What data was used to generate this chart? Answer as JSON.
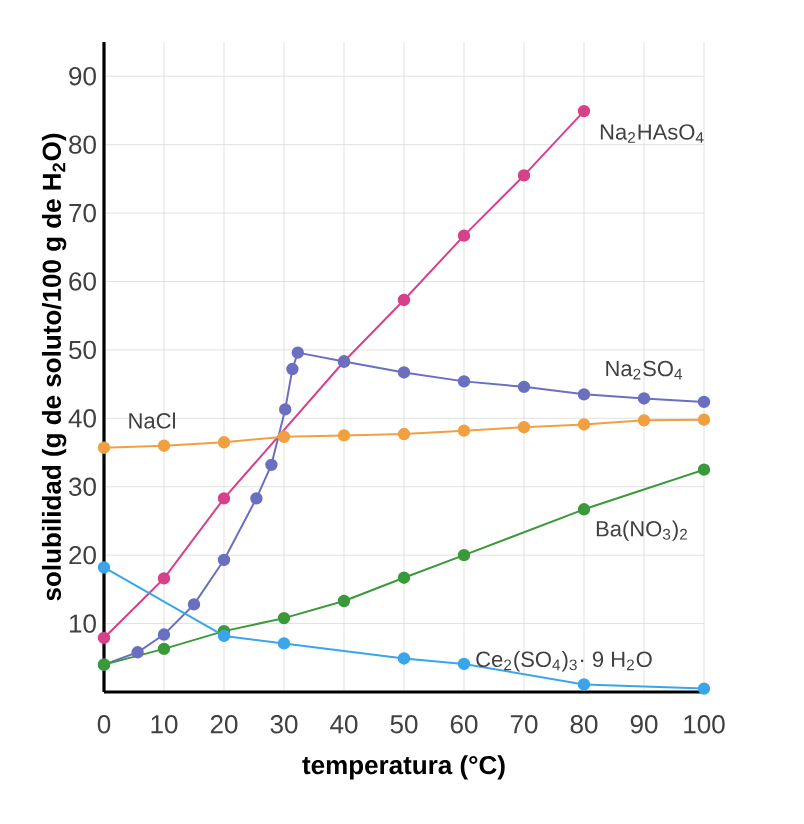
{
  "chart_data": {
    "type": "line",
    "xlabel": "temperatura (°C)",
    "ylabel": "solubilidad (g de soluto/100 g de H$_{2}$O)",
    "xlim": [
      0,
      100
    ],
    "ylim": [
      0,
      95
    ],
    "xticks": [
      0,
      10,
      20,
      30,
      40,
      50,
      60,
      70,
      80,
      90,
      100
    ],
    "yticks": [
      10,
      20,
      30,
      40,
      50,
      60,
      70,
      80,
      90
    ],
    "grid": true,
    "marker": "circle",
    "line_style": "solid",
    "series": [
      {
        "name": "Na$_{2}$HAsO$_{4}$",
        "color": "#d6418a",
        "x": [
          0,
          10,
          20,
          40,
          50,
          60,
          70,
          80
        ],
        "values": [
          7.9,
          16.6,
          28.3,
          48.3,
          57.3,
          66.7,
          75.5,
          84.9
        ]
      },
      {
        "name": "Na$_{2}$SO$_{4}$",
        "color": "#6a6fc0",
        "x": [
          0,
          5.6,
          10,
          15,
          20,
          25.4,
          27.9,
          30.2,
          31.4,
          32.3,
          40,
          50,
          60,
          70,
          80,
          90,
          100
        ],
        "values": [
          4,
          5.8,
          8.4,
          12.8,
          19.3,
          28.3,
          33.2,
          41.3,
          47.2,
          49.6,
          48.3,
          46.7,
          45.4,
          44.6,
          43.5,
          42.9,
          42.4
        ]
      },
      {
        "name": "NaCl",
        "color": "#f0a040",
        "x": [
          0,
          10,
          20,
          30,
          40,
          50,
          60,
          70,
          80,
          90,
          100
        ],
        "values": [
          35.7,
          36,
          36.5,
          37.3,
          37.5,
          37.7,
          38.2,
          38.7,
          39.1,
          39.7,
          39.8
        ]
      },
      {
        "name": "Ba(NO$_{3}$)$_{2}$",
        "color": "#3a9a3a",
        "x": [
          0,
          10,
          20,
          30,
          40,
          50,
          60,
          80,
          100
        ],
        "values": [
          4,
          6.3,
          8.9,
          10.8,
          13.3,
          16.7,
          20,
          26.7,
          32.5
        ]
      },
      {
        "name": "Ce$_{2}$(SO$_{4}$)$_{3}$· 9 H$_{2}$O",
        "color": "#3aa5e8",
        "x": [
          0,
          20,
          30,
          50,
          60,
          80,
          100
        ],
        "values": [
          18.2,
          8.2,
          7.1,
          4.9,
          4.1,
          1.1,
          0.5
        ]
      }
    ]
  }
}
